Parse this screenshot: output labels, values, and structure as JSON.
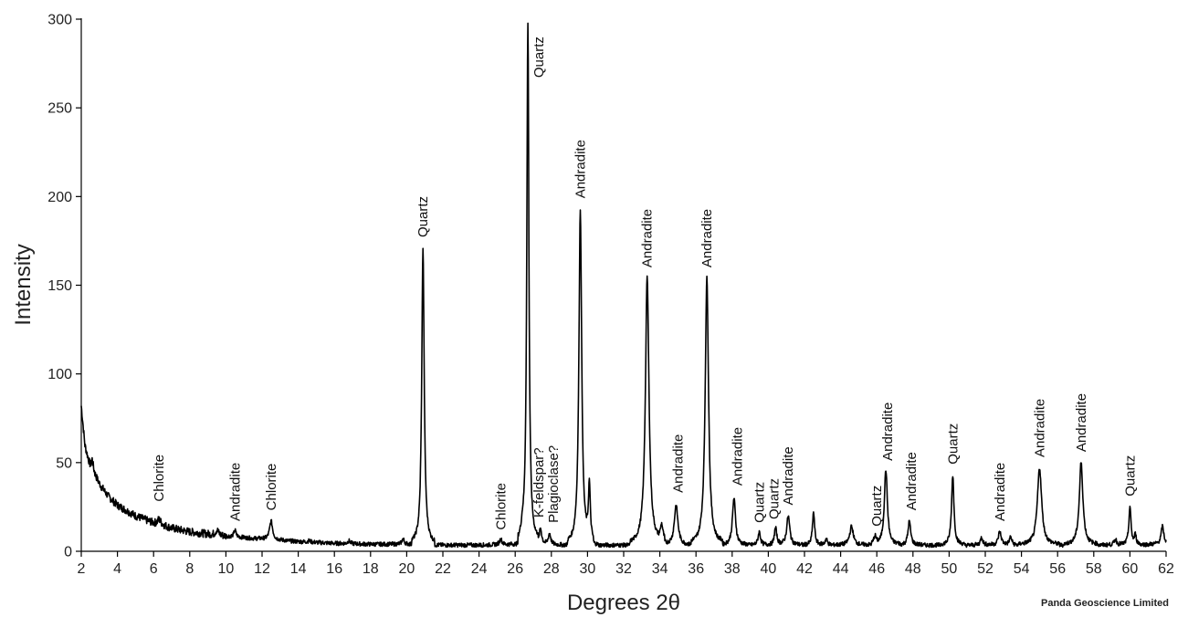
{
  "chart_data": {
    "type": "line",
    "title": "",
    "xlabel": "Degrees 2θ",
    "ylabel": "Intensity",
    "xlim": [
      2,
      62
    ],
    "ylim": [
      0,
      300
    ],
    "xticks": [
      2,
      4,
      6,
      8,
      10,
      12,
      14,
      16,
      18,
      20,
      22,
      24,
      26,
      28,
      30,
      32,
      34,
      36,
      38,
      40,
      42,
      44,
      46,
      48,
      50,
      52,
      54,
      56,
      58,
      60,
      62
    ],
    "yticks": [
      0,
      50,
      100,
      150,
      200,
      250,
      300
    ],
    "grid": false,
    "legend": "none",
    "line_color": "#000000",
    "series": [
      {
        "baseline": [
          [
            2,
            82
          ],
          [
            2.2,
            60
          ],
          [
            2.5,
            48
          ],
          [
            3,
            38
          ],
          [
            3.5,
            31
          ],
          [
            4,
            26
          ],
          [
            5,
            20
          ],
          [
            6,
            16
          ],
          [
            7,
            13
          ],
          [
            8,
            11
          ],
          [
            10,
            8.5
          ],
          [
            12,
            7
          ],
          [
            14,
            5.5
          ],
          [
            16,
            4.5
          ],
          [
            18,
            4
          ],
          [
            20,
            4
          ],
          [
            22,
            3.5
          ],
          [
            24,
            3.5
          ],
          [
            26,
            4
          ],
          [
            30,
            3.5
          ],
          [
            34,
            3.5
          ],
          [
            40,
            3.5
          ],
          [
            46,
            3.5
          ],
          [
            52,
            3.5
          ],
          [
            58,
            3.5
          ],
          [
            62,
            4
          ]
        ],
        "peaks": [
          {
            "x": 2.6,
            "y": 52,
            "w": 0.06
          },
          {
            "x": 6.3,
            "y": 18,
            "w": 0.12
          },
          {
            "x": 9.5,
            "y": 12,
            "w": 0.1
          },
          {
            "x": 10.5,
            "y": 12,
            "w": 0.07
          },
          {
            "x": 12.5,
            "y": 17,
            "w": 0.1
          },
          {
            "x": 14.6,
            "y": 6,
            "w": 0.08
          },
          {
            "x": 16.8,
            "y": 6,
            "w": 0.08
          },
          {
            "x": 19.8,
            "y": 7,
            "w": 0.08
          },
          {
            "x": 20.9,
            "y": 171,
            "w": 0.08
          },
          {
            "x": 25.2,
            "y": 7,
            "w": 0.08
          },
          {
            "x": 26.4,
            "y": 9,
            "w": 0.08
          },
          {
            "x": 26.7,
            "y": 298,
            "w": 0.07
          },
          {
            "x": 27.4,
            "y": 13,
            "w": 0.08
          },
          {
            "x": 27.9,
            "y": 10,
            "w": 0.08
          },
          {
            "x": 29.6,
            "y": 193,
            "w": 0.09
          },
          {
            "x": 30.1,
            "y": 35,
            "w": 0.06
          },
          {
            "x": 33.3,
            "y": 154,
            "w": 0.12
          },
          {
            "x": 34.1,
            "y": 12,
            "w": 0.08
          },
          {
            "x": 34.9,
            "y": 26,
            "w": 0.12
          },
          {
            "x": 36.6,
            "y": 154,
            "w": 0.11
          },
          {
            "x": 38.1,
            "y": 30,
            "w": 0.1
          },
          {
            "x": 39.5,
            "y": 11,
            "w": 0.08
          },
          {
            "x": 40.4,
            "y": 13,
            "w": 0.08
          },
          {
            "x": 41.1,
            "y": 20,
            "w": 0.1
          },
          {
            "x": 42.5,
            "y": 22,
            "w": 0.07
          },
          {
            "x": 43.2,
            "y": 7,
            "w": 0.08
          },
          {
            "x": 44.6,
            "y": 14,
            "w": 0.12
          },
          {
            "x": 45.9,
            "y": 8,
            "w": 0.08
          },
          {
            "x": 46.5,
            "y": 46,
            "w": 0.1
          },
          {
            "x": 47.8,
            "y": 17,
            "w": 0.09
          },
          {
            "x": 50.2,
            "y": 43,
            "w": 0.08
          },
          {
            "x": 51.8,
            "y": 8,
            "w": 0.08
          },
          {
            "x": 52.8,
            "y": 11,
            "w": 0.1
          },
          {
            "x": 53.4,
            "y": 8,
            "w": 0.08
          },
          {
            "x": 55.0,
            "y": 47,
            "w": 0.14
          },
          {
            "x": 57.3,
            "y": 50,
            "w": 0.12
          },
          {
            "x": 59.2,
            "y": 7,
            "w": 0.08
          },
          {
            "x": 60.0,
            "y": 25,
            "w": 0.07
          },
          {
            "x": 60.3,
            "y": 9,
            "w": 0.06
          },
          {
            "x": 61.8,
            "y": 14,
            "w": 0.09
          }
        ]
      }
    ],
    "annotations": [
      {
        "text": "Chlorite",
        "x": 6.3,
        "y": 28
      },
      {
        "text": "Andradite",
        "x": 10.5,
        "y": 17
      },
      {
        "text": "Chlorite",
        "x": 12.5,
        "y": 23
      },
      {
        "text": "Quartz",
        "x": 20.9,
        "y": 177
      },
      {
        "text": "Chlorite",
        "x": 25.2,
        "y": 12
      },
      {
        "text": "K-feldspar?",
        "x": 27.3,
        "y": 19
      },
      {
        "text": "Plagioclase?",
        "x": 28.1,
        "y": 16
      },
      {
        "text": "Quartz",
        "x": 27.3,
        "y": 267
      },
      {
        "text": "Andradite",
        "x": 29.6,
        "y": 199
      },
      {
        "text": "Andradite",
        "x": 33.3,
        "y": 160
      },
      {
        "text": "Andradite",
        "x": 35.0,
        "y": 33
      },
      {
        "text": "Andradite",
        "x": 36.6,
        "y": 160
      },
      {
        "text": "Andradite",
        "x": 38.3,
        "y": 37
      },
      {
        "text": "Quartz",
        "x": 39.5,
        "y": 16
      },
      {
        "text": "Quartz",
        "x": 40.3,
        "y": 18
      },
      {
        "text": "Andradite",
        "x": 41.1,
        "y": 26
      },
      {
        "text": "Quartz",
        "x": 46.0,
        "y": 14
      },
      {
        "text": "Andradite",
        "x": 46.6,
        "y": 51
      },
      {
        "text": "Andradite",
        "x": 47.9,
        "y": 23
      },
      {
        "text": "Quartz",
        "x": 50.2,
        "y": 49
      },
      {
        "text": "Andradite",
        "x": 52.8,
        "y": 17
      },
      {
        "text": "Andradite",
        "x": 55.0,
        "y": 53
      },
      {
        "text": "Andradite",
        "x": 57.3,
        "y": 56
      },
      {
        "text": "Quartz",
        "x": 60.0,
        "y": 31
      }
    ]
  },
  "credit": "Panda Geoscience Limited"
}
